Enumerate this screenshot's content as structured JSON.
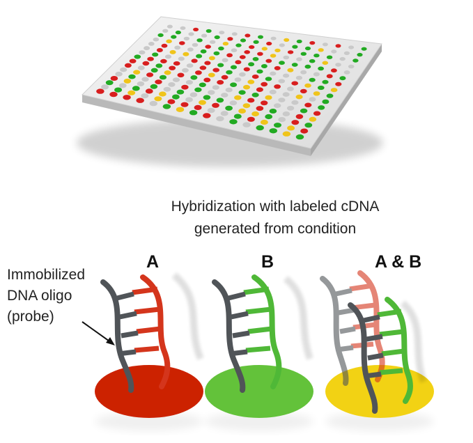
{
  "caption": {
    "line1": "Hybridization with labeled cDNA",
    "line2": "generated from condition"
  },
  "conditions": [
    {
      "label": "A",
      "spot_color": "#cc2200",
      "strand_color": "#d4351c"
    },
    {
      "label": "B",
      "spot_color": "#63c23a",
      "strand_color": "#4fb837"
    },
    {
      "label": "A & B",
      "spot_color": "#f2d214",
      "strand_color": ""
    }
  ],
  "probe_label": {
    "line1": "Immobilized",
    "line2": "DNA oligo",
    "line3": "(probe)"
  },
  "colors": {
    "probe_strand": "#505458",
    "red_dot": "#d81e1e",
    "green_dot": "#22aa22",
    "yellow_dot": "#f0c41a",
    "empty_dot": "#c9c9c9",
    "slide_top": "#eaeaea",
    "slide_edge": "#bfbfbf"
  }
}
